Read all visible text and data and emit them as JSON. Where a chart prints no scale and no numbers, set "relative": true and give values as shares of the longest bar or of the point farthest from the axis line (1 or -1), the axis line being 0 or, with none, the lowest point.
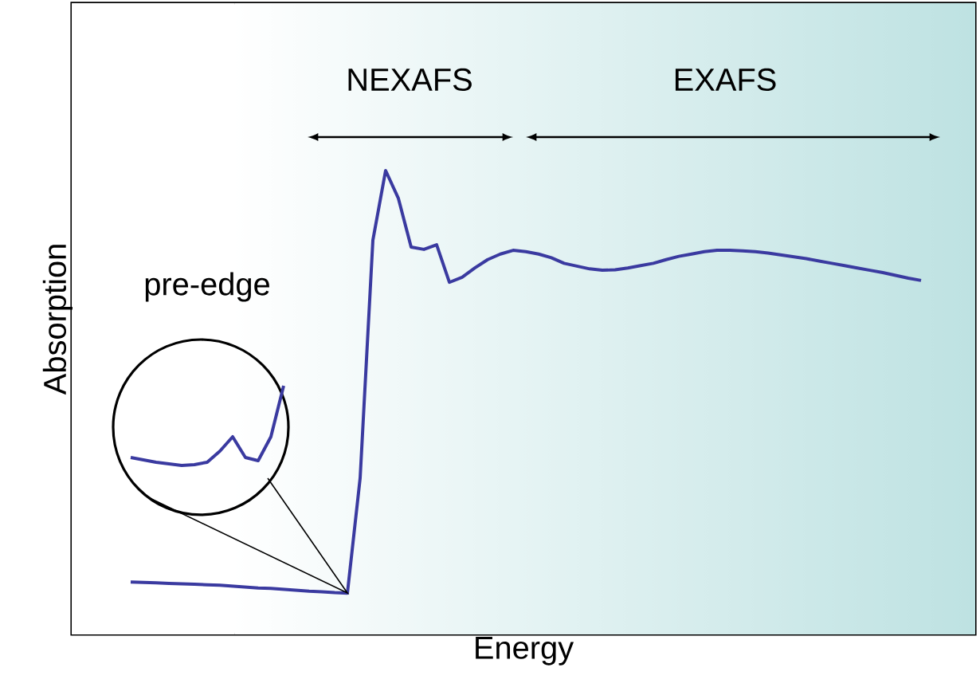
{
  "chart_data": [
    {
      "type": "line",
      "relative": true,
      "xlabel": "Energy",
      "ylabel": "Absorption",
      "color": "#3a3aa0",
      "categories": [
        null,
        null,
        null,
        null,
        null,
        null,
        null,
        null,
        null,
        null,
        null,
        null,
        null,
        null,
        null,
        null,
        null,
        null,
        null,
        null,
        null,
        null,
        null,
        null,
        null,
        null,
        null,
        null,
        null,
        null,
        null,
        null,
        null,
        null,
        null,
        null,
        null,
        null,
        null,
        null,
        null,
        null,
        null,
        null,
        null,
        null,
        null,
        null,
        null,
        null,
        null,
        null,
        null,
        null,
        null,
        null,
        null,
        null,
        null,
        null,
        null,
        null,
        null
      ],
      "values": [
        0.113,
        0.112,
        0.111,
        0.11,
        0.109,
        0.108,
        0.107,
        0.106,
        0.104,
        0.102,
        0.1,
        0.099,
        0.097,
        0.095,
        0.093,
        0.092,
        0.09,
        0.089,
        0.337,
        0.85,
        1.0,
        0.94,
        0.835,
        0.83,
        0.84,
        0.759,
        0.77,
        0.79,
        0.808,
        0.82,
        0.828,
        0.825,
        0.82,
        0.812,
        0.8,
        0.794,
        0.788,
        0.785,
        0.786,
        0.79,
        0.795,
        0.8,
        0.808,
        0.815,
        0.82,
        0.825,
        0.828,
        0.828,
        0.827,
        0.825,
        0.822,
        0.818,
        0.814,
        0.81,
        0.805,
        0.8,
        0.795,
        0.79,
        0.785,
        0.78,
        0.774,
        0.768,
        0.763
      ],
      "annotations": [
        "NEXAFS",
        "EXAFS",
        "pre-edge"
      ]
    },
    {
      "type": "line",
      "relative": true,
      "color": "#3a3aa0",
      "categories": [
        null,
        null,
        null,
        null,
        null,
        null,
        null,
        null,
        null,
        null,
        null,
        null,
        null
      ],
      "values": [
        0.1,
        0.07,
        0.04,
        0.02,
        0,
        0.01,
        0.04,
        0.18,
        0.36,
        0.1,
        0.06,
        0.36,
        1
      ]
    }
  ]
}
